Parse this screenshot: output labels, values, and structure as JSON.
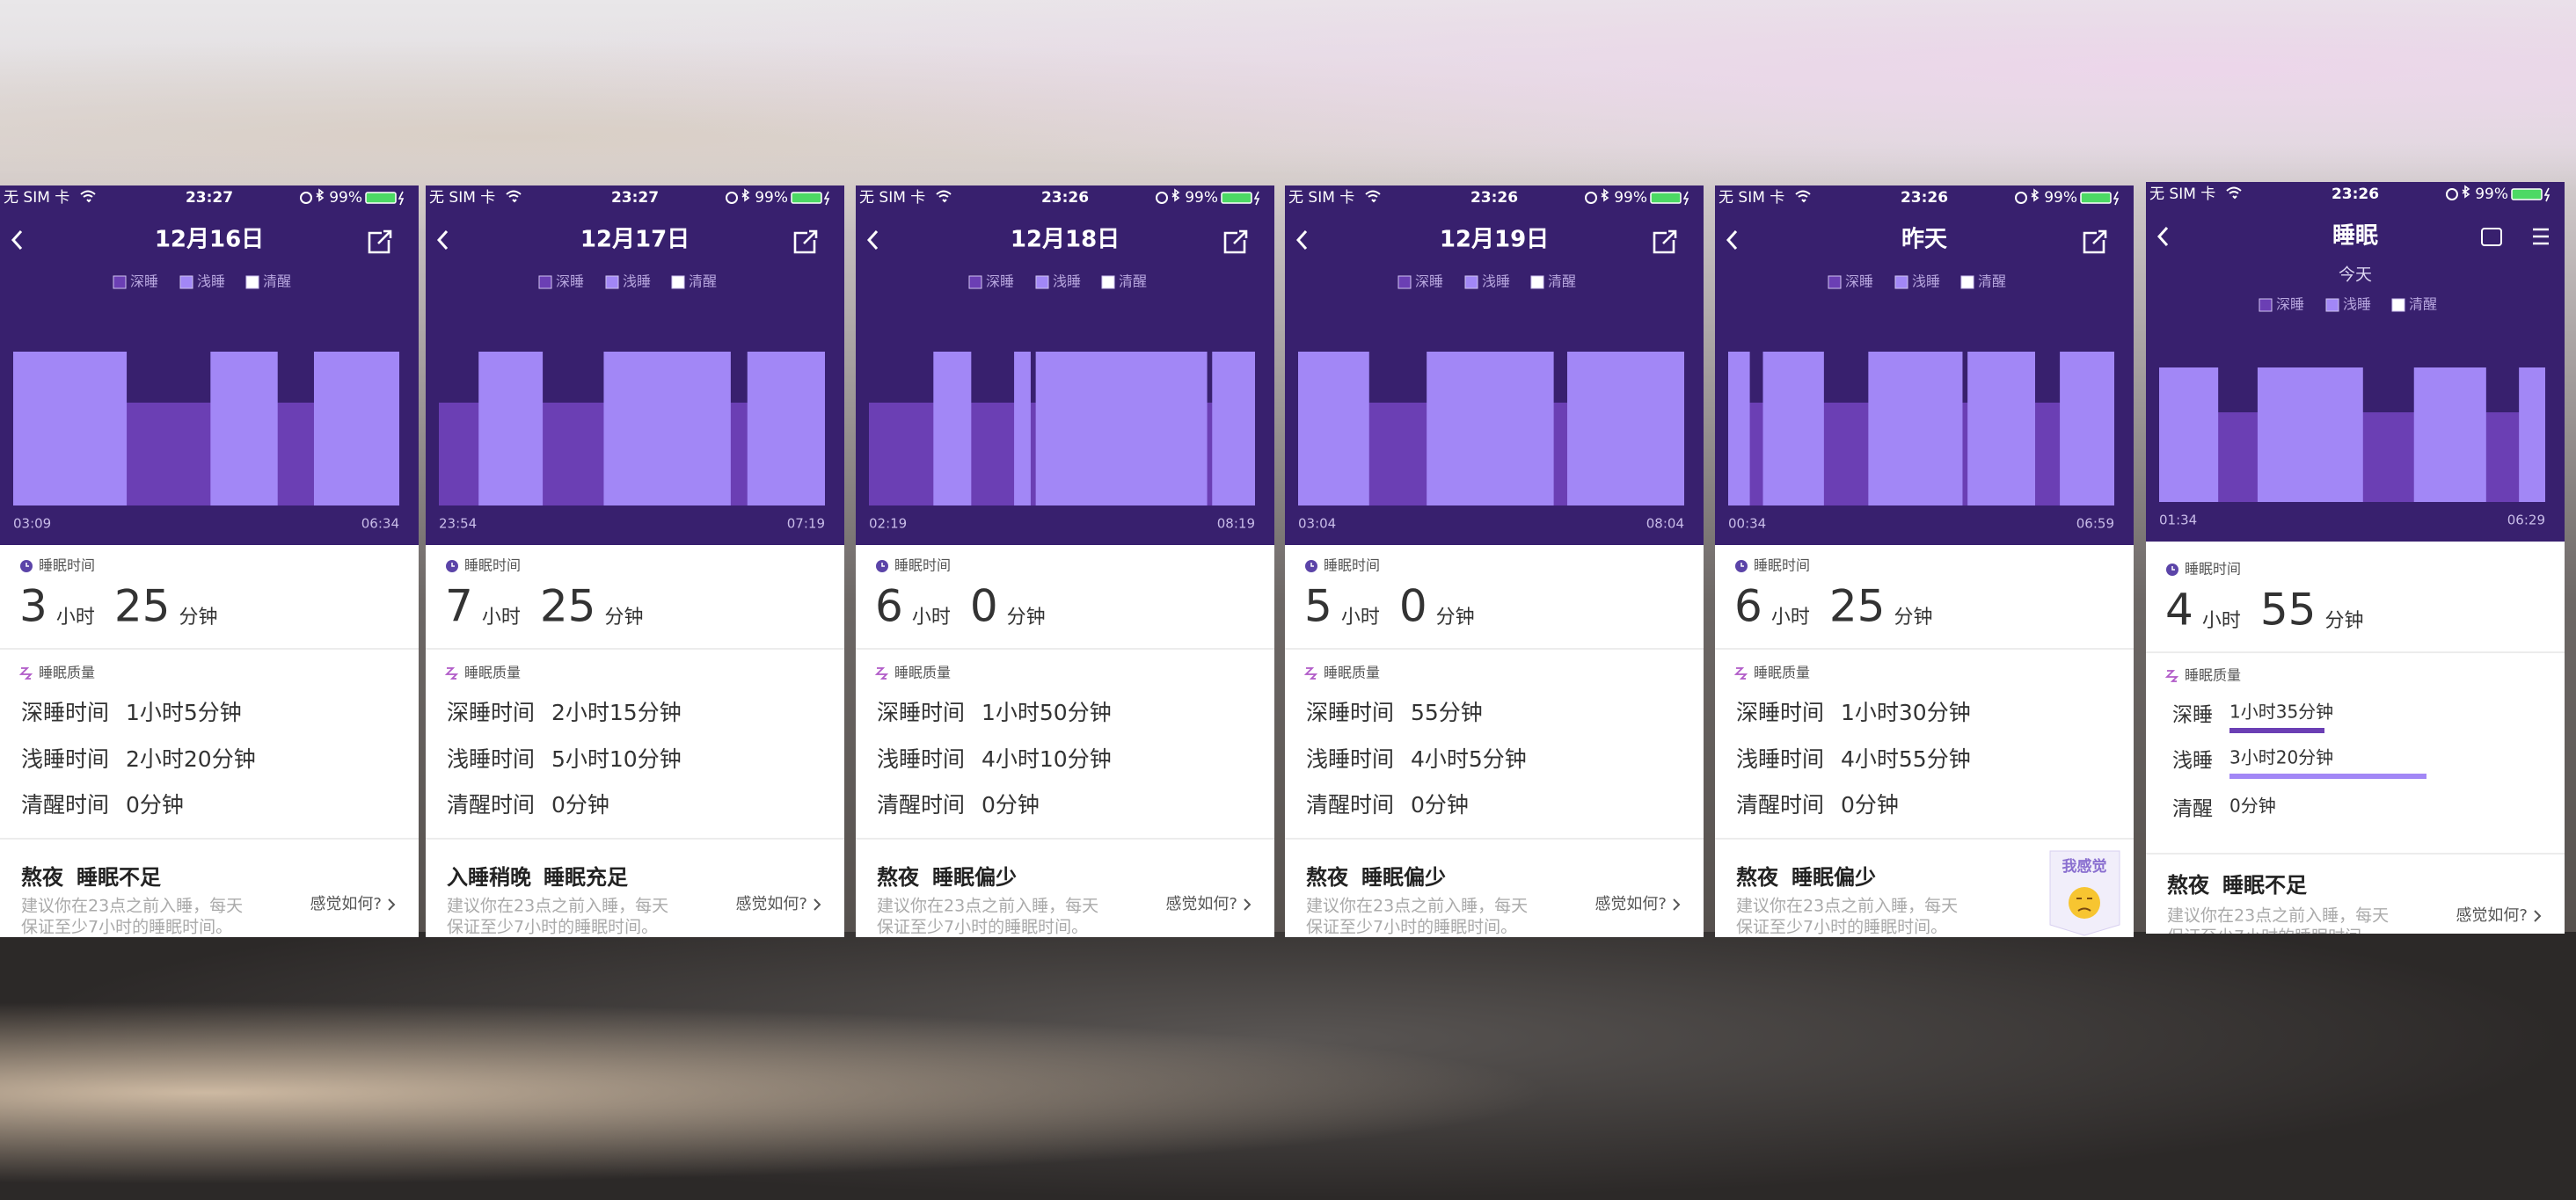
{
  "common": {
    "carrier": "无 SIM 卡",
    "battery": "99%",
    "legend": [
      "深睡",
      "浅睡",
      "清醒"
    ],
    "sleep_time_label": "睡眠时间",
    "hour_unit": "小时",
    "minute_unit": "分钟",
    "quality_label": "睡眠质量",
    "advice": [
      "建议你在23点之前入睡，每天",
      "保证至少7小时的睡眠时间。"
    ],
    "feeling": "感觉如何?"
  },
  "panels": [
    {
      "time": "23:27",
      "title": "12月16日",
      "start_time": "03:09",
      "end_time": "06:34",
      "light_blocks": [
        [
          0,
          0.294
        ],
        [
          0.511,
          0.685
        ],
        [
          0.779,
          1
        ]
      ],
      "hours": "3",
      "minutes": "25",
      "rows": [
        {
          "label": "深睡时间",
          "value": "1小时5分钟"
        },
        {
          "label": "浅睡时间",
          "value": "2小时20分钟"
        },
        {
          "label": "清醒时间",
          "value": "0分钟"
        }
      ],
      "verdict": [
        "熬夜",
        "睡眠不足"
      ]
    },
    {
      "time": "23:27",
      "title": "12月17日",
      "start_time": "23:54",
      "end_time": "07:19",
      "light_blocks": [
        [
          0.103,
          0.269
        ],
        [
          0.427,
          0.756
        ],
        [
          0.799,
          1
        ]
      ],
      "hours": "7",
      "minutes": "25",
      "rows": [
        {
          "label": "深睡时间",
          "value": "2小时15分钟"
        },
        {
          "label": "浅睡时间",
          "value": "5小时10分钟"
        },
        {
          "label": "清醒时间",
          "value": "0分钟"
        }
      ],
      "verdict": [
        "入睡稍晚",
        "睡眠充足"
      ]
    },
    {
      "time": "23:26",
      "title": "12月18日",
      "start_time": "02:19",
      "end_time": "08:19",
      "light_blocks": [
        [
          0.167,
          0.265
        ],
        [
          0.376,
          0.419
        ],
        [
          0.432,
          0.876
        ],
        [
          0.889,
          1
        ]
      ],
      "hours": "6",
      "minutes": "0",
      "rows": [
        {
          "label": "深睡时间",
          "value": "1小时50分钟"
        },
        {
          "label": "浅睡时间",
          "value": "4小时10分钟"
        },
        {
          "label": "清醒时间",
          "value": "0分钟"
        }
      ],
      "verdict": [
        "熬夜",
        "睡眠偏少"
      ]
    },
    {
      "time": "23:26",
      "title": "12月19日",
      "start_time": "03:04",
      "end_time": "08:04",
      "light_blocks": [
        [
          0,
          0.184
        ],
        [
          0.333,
          0.662
        ],
        [
          0.697,
          1
        ]
      ],
      "hours": "5",
      "minutes": "0",
      "rows": [
        {
          "label": "深睡时间",
          "value": "55分钟"
        },
        {
          "label": "浅睡时间",
          "value": "4小时5分钟"
        },
        {
          "label": "清醒时间",
          "value": "0分钟"
        }
      ],
      "verdict": [
        "熬夜",
        "睡眠偏少"
      ]
    },
    {
      "time": "23:26",
      "title": "昨天",
      "start_time": "00:34",
      "end_time": "06:59",
      "light_blocks": [
        [
          0,
          0.056
        ],
        [
          0.09,
          0.248
        ],
        [
          0.363,
          0.607
        ],
        [
          0.62,
          0.795
        ],
        [
          0.859,
          1
        ]
      ],
      "hours": "6",
      "minutes": "25",
      "rows": [
        {
          "label": "深睡时间",
          "value": "1小时30分钟"
        },
        {
          "label": "浅睡时间",
          "value": "4小时55分钟"
        },
        {
          "label": "清醒时间",
          "value": "0分钟"
        }
      ],
      "verdict": [
        "熬夜",
        "睡眠偏少"
      ],
      "feeling_badge": "我感觉"
    },
    {
      "time": "23:26",
      "title": "睡眠",
      "subtitle": "今天",
      "start_time": "01:34",
      "end_time": "06:29",
      "light_blocks": [
        [
          0,
          0.153
        ],
        [
          0.255,
          0.528
        ],
        [
          0.66,
          0.847
        ],
        [
          0.932,
          1
        ]
      ],
      "hours": "4",
      "minutes": "55",
      "rows": [
        {
          "label": "深睡",
          "value": "1小时35分钟"
        },
        {
          "label": "浅睡",
          "value": "3小时20分钟"
        },
        {
          "label": "清醒",
          "value": "0分钟"
        }
      ],
      "verdict": [
        "熬夜",
        "睡眠不足"
      ]
    }
  ]
}
